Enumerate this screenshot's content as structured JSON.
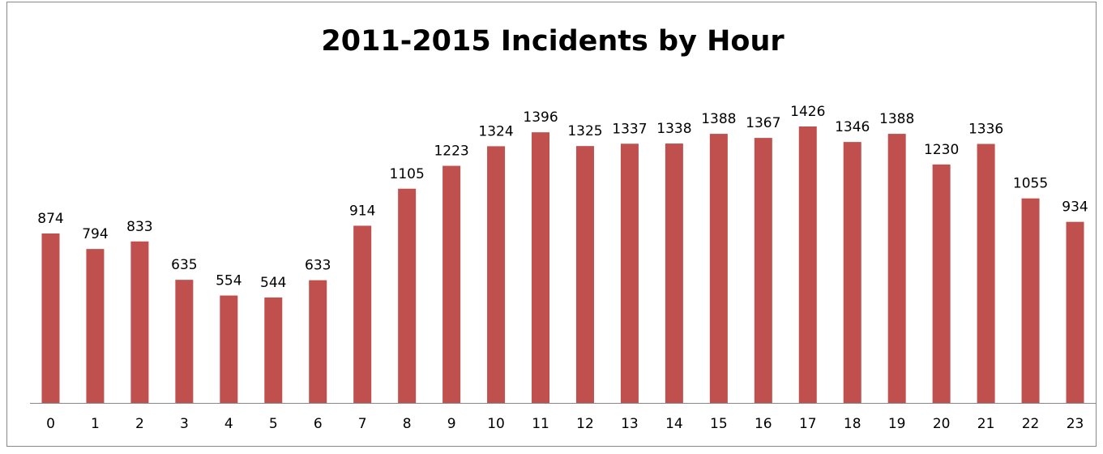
{
  "chart_data": {
    "type": "bar",
    "title": "2011-2015 Incidents by Hour",
    "categories": [
      "0",
      "1",
      "2",
      "3",
      "4",
      "5",
      "6",
      "7",
      "8",
      "9",
      "10",
      "11",
      "12",
      "13",
      "14",
      "15",
      "16",
      "17",
      "18",
      "19",
      "20",
      "21",
      "22",
      "23"
    ],
    "values": [
      874,
      794,
      833,
      635,
      554,
      544,
      633,
      914,
      1105,
      1223,
      1324,
      1396,
      1325,
      1337,
      1338,
      1388,
      1367,
      1426,
      1346,
      1388,
      1230,
      1336,
      1055,
      934
    ],
    "color": "#c0504d"
  }
}
